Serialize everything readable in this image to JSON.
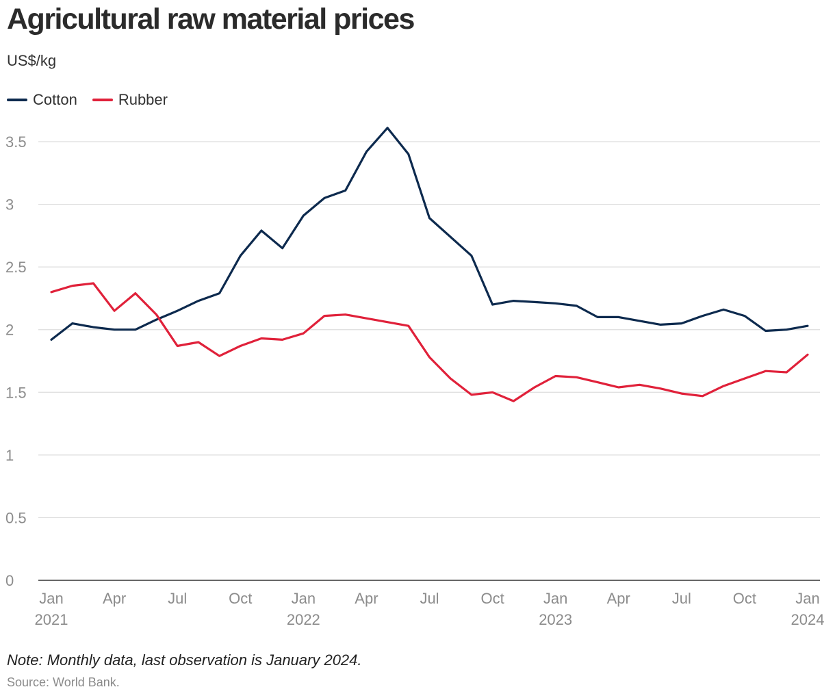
{
  "title": "Agricultural raw material prices",
  "unit": "US$/kg",
  "note": "Note: Monthly data, last observation is January 2024.",
  "source": "Source: World Bank.",
  "colors": {
    "cotton": "#0d2a4e",
    "rubber": "#e0213a",
    "grid": "#dddddd",
    "axis": "#333333",
    "tick": "#8c8c8c"
  },
  "chart_data": {
    "type": "line",
    "title": "Agricultural raw material prices",
    "ylabel": "US$/kg",
    "ylim": [
      0,
      3.5
    ],
    "yticks": [
      "0",
      "0.5",
      "1",
      "1.5",
      "2",
      "2.5",
      "3",
      "3.5"
    ],
    "xticks": [
      {
        "month": "Jan",
        "year": "2021"
      },
      {
        "month": "Apr",
        "year": ""
      },
      {
        "month": "Jul",
        "year": ""
      },
      {
        "month": "Oct",
        "year": ""
      },
      {
        "month": "Jan",
        "year": "2022"
      },
      {
        "month": "Apr",
        "year": ""
      },
      {
        "month": "Jul",
        "year": ""
      },
      {
        "month": "Oct",
        "year": ""
      },
      {
        "month": "Jan",
        "year": "2023"
      },
      {
        "month": "Apr",
        "year": ""
      },
      {
        "month": "Jul",
        "year": ""
      },
      {
        "month": "Oct",
        "year": ""
      },
      {
        "month": "Jan",
        "year": "2024"
      }
    ],
    "x": [
      "2021-01",
      "2021-02",
      "2021-03",
      "2021-04",
      "2021-05",
      "2021-06",
      "2021-07",
      "2021-08",
      "2021-09",
      "2021-10",
      "2021-11",
      "2021-12",
      "2022-01",
      "2022-02",
      "2022-03",
      "2022-04",
      "2022-05",
      "2022-06",
      "2022-07",
      "2022-08",
      "2022-09",
      "2022-10",
      "2022-11",
      "2022-12",
      "2023-01",
      "2023-02",
      "2023-03",
      "2023-04",
      "2023-05",
      "2023-06",
      "2023-07",
      "2023-08",
      "2023-09",
      "2023-10",
      "2023-11",
      "2023-12",
      "2024-01"
    ],
    "series": [
      {
        "name": "Cotton",
        "values": [
          1.92,
          2.05,
          2.02,
          2.0,
          2.0,
          2.08,
          2.15,
          2.23,
          2.29,
          2.59,
          2.79,
          2.65,
          2.91,
          3.05,
          3.11,
          3.42,
          3.61,
          3.4,
          2.89,
          2.74,
          2.59,
          2.2,
          2.23,
          2.22,
          2.21,
          2.19,
          2.1,
          2.1,
          2.07,
          2.04,
          2.05,
          2.11,
          2.16,
          2.11,
          1.99,
          2.0,
          2.03
        ]
      },
      {
        "name": "Rubber",
        "values": [
          2.3,
          2.35,
          2.37,
          2.15,
          2.29,
          2.12,
          1.87,
          1.9,
          1.79,
          1.87,
          1.93,
          1.92,
          1.97,
          2.11,
          2.12,
          2.09,
          2.06,
          2.03,
          1.78,
          1.61,
          1.48,
          1.5,
          1.43,
          1.54,
          1.63,
          1.62,
          1.58,
          1.54,
          1.56,
          1.53,
          1.49,
          1.47,
          1.55,
          1.61,
          1.67,
          1.66,
          1.8
        ]
      }
    ],
    "grid": true,
    "legend": "top-left"
  }
}
